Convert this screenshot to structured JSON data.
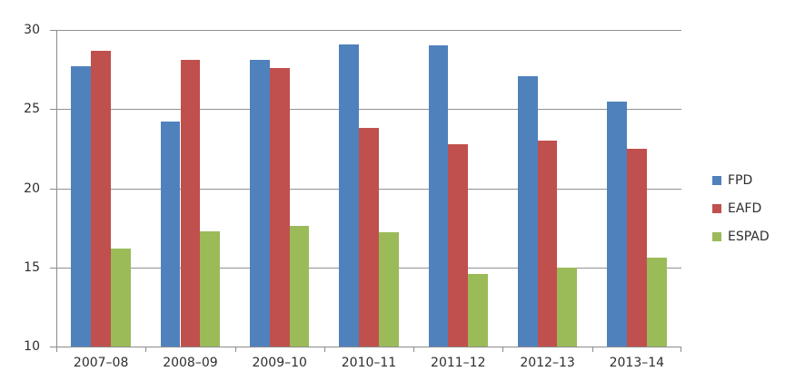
{
  "chart_data": {
    "type": "bar",
    "title": "",
    "xlabel": "",
    "ylabel": "",
    "categories": [
      "2007–08",
      "2008–09",
      "2009–10",
      "2010–11",
      "2011–12",
      "2012–13",
      "2013–14"
    ],
    "series": [
      {
        "name": "FPD",
        "color": "#4F81BD",
        "values": [
          27.7,
          24.2,
          28.1,
          29.1,
          29.0,
          27.1,
          25.5
        ]
      },
      {
        "name": "EAFD",
        "color": "#C0504D",
        "values": [
          28.7,
          28.1,
          27.6,
          23.8,
          22.8,
          23.0,
          22.5
        ]
      },
      {
        "name": "ESPAD",
        "color": "#9BBB59",
        "values": [
          16.2,
          17.3,
          17.6,
          17.2,
          14.6,
          15.0,
          15.6
        ]
      }
    ],
    "ylim": [
      10,
      30
    ],
    "yticks": [
      30,
      25,
      20,
      15,
      10
    ],
    "grid": true,
    "legend_position": "right",
    "gap_width_percent": 150
  },
  "style": {
    "gridline_color": "#919191",
    "axis_color": "#8C8C8C",
    "text_color": "#2e2e2e",
    "background": "#FFFFFF"
  }
}
